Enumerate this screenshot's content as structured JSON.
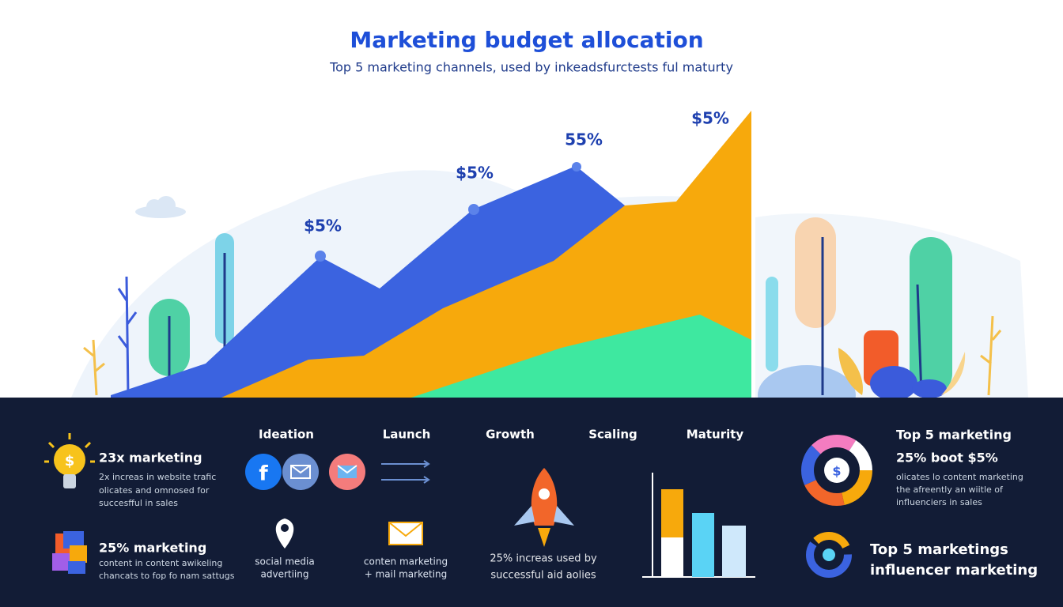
{
  "header": {
    "title": "Marketing budget allocation",
    "subtitle": "Top 5 marketing channels, used by inkeadsfurctests ful maturty"
  },
  "area_chart": {
    "peak_labels": [
      "$5%",
      "$5%",
      "55%",
      "$5%"
    ]
  },
  "stages": [
    "Ideation",
    "Launch",
    "Growth",
    "Scaling",
    "Maturity"
  ],
  "left_panel": {
    "items": [
      {
        "heading": "23x marketing",
        "lines": [
          "2x increas in website trafic",
          "olicates and omnosed for",
          "succesfful in sales"
        ]
      },
      {
        "heading": "25% marketing",
        "lines": [
          "content in content awikeling",
          "chancats to fop fo nam sattugs"
        ]
      }
    ]
  },
  "middle_panel": {
    "social": [
      "social media",
      "advertiing"
    ],
    "content": [
      "conten marketing",
      "+ mail marketing"
    ],
    "growth": [
      "25% increas used by",
      "successful aid aolies"
    ]
  },
  "right_panel": {
    "heading": "Top 5 marketing",
    "subheading": "25% boot $5%",
    "lines": [
      "olicates lo content marketing",
      "the afreently an wiitle of",
      "influenciers in sales"
    ],
    "footer": [
      "Top 5 marketings",
      "influencer marketing"
    ]
  }
}
